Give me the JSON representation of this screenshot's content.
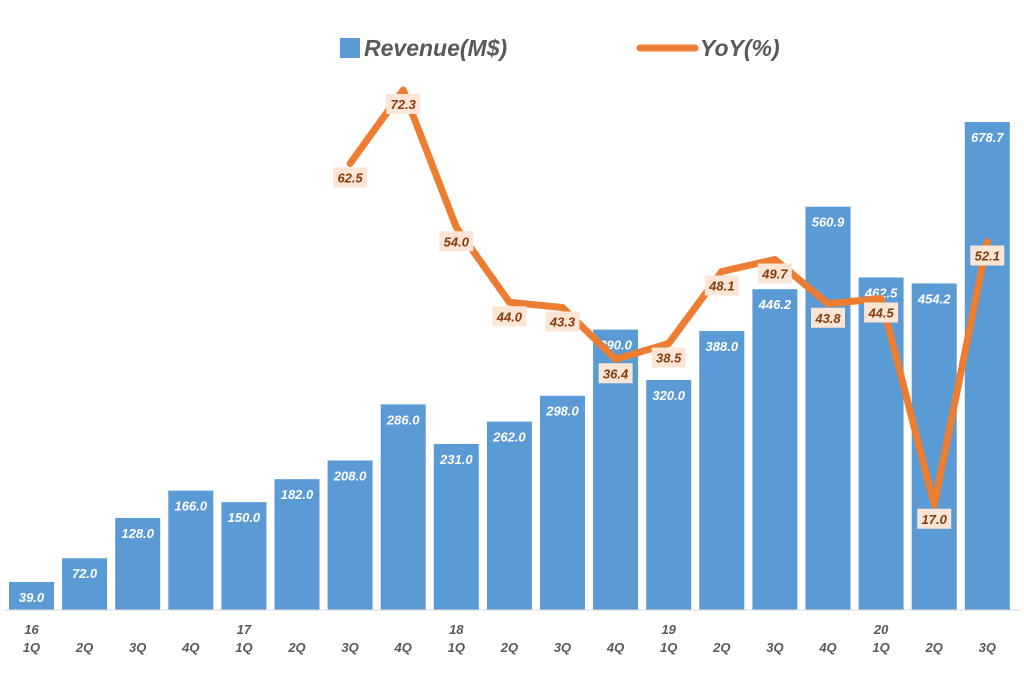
{
  "chart_data": {
    "type": "bar",
    "title": "",
    "xlabel": "",
    "ylabel": "",
    "categories": [
      "1Q",
      "2Q",
      "3Q",
      "4Q",
      "1Q",
      "2Q",
      "3Q",
      "4Q",
      "1Q",
      "2Q",
      "3Q",
      "4Q",
      "1Q",
      "2Q",
      "3Q",
      "4Q",
      "1Q",
      "2Q",
      "3Q"
    ],
    "year_labels": [
      "16",
      "",
      "",
      "",
      "17",
      "",
      "",
      "",
      "18",
      "",
      "",
      "",
      "19",
      "",
      "",
      "",
      "20",
      "",
      ""
    ],
    "series": [
      {
        "name": "Revenue(M$)",
        "type": "bar",
        "color": "#5b9bd5",
        "values": [
          39.0,
          72.0,
          128.0,
          166.0,
          150.0,
          182.0,
          208.0,
          286.0,
          231.0,
          262.0,
          298.0,
          390.0,
          320.0,
          388.0,
          446.2,
          560.9,
          462.5,
          454.2,
          678.7
        ]
      },
      {
        "name": "YoY(%)",
        "type": "line",
        "color": "#ed7d31",
        "values": [
          null,
          null,
          null,
          null,
          null,
          null,
          62.5,
          72.3,
          54.0,
          44.0,
          43.3,
          36.4,
          38.5,
          48.1,
          49.7,
          43.8,
          44.5,
          17.0,
          52.1
        ]
      }
    ],
    "ylim_bar": [
      0,
      700
    ],
    "ylim_line": [
      0,
      80
    ],
    "grid": false,
    "legend": "top-center"
  }
}
